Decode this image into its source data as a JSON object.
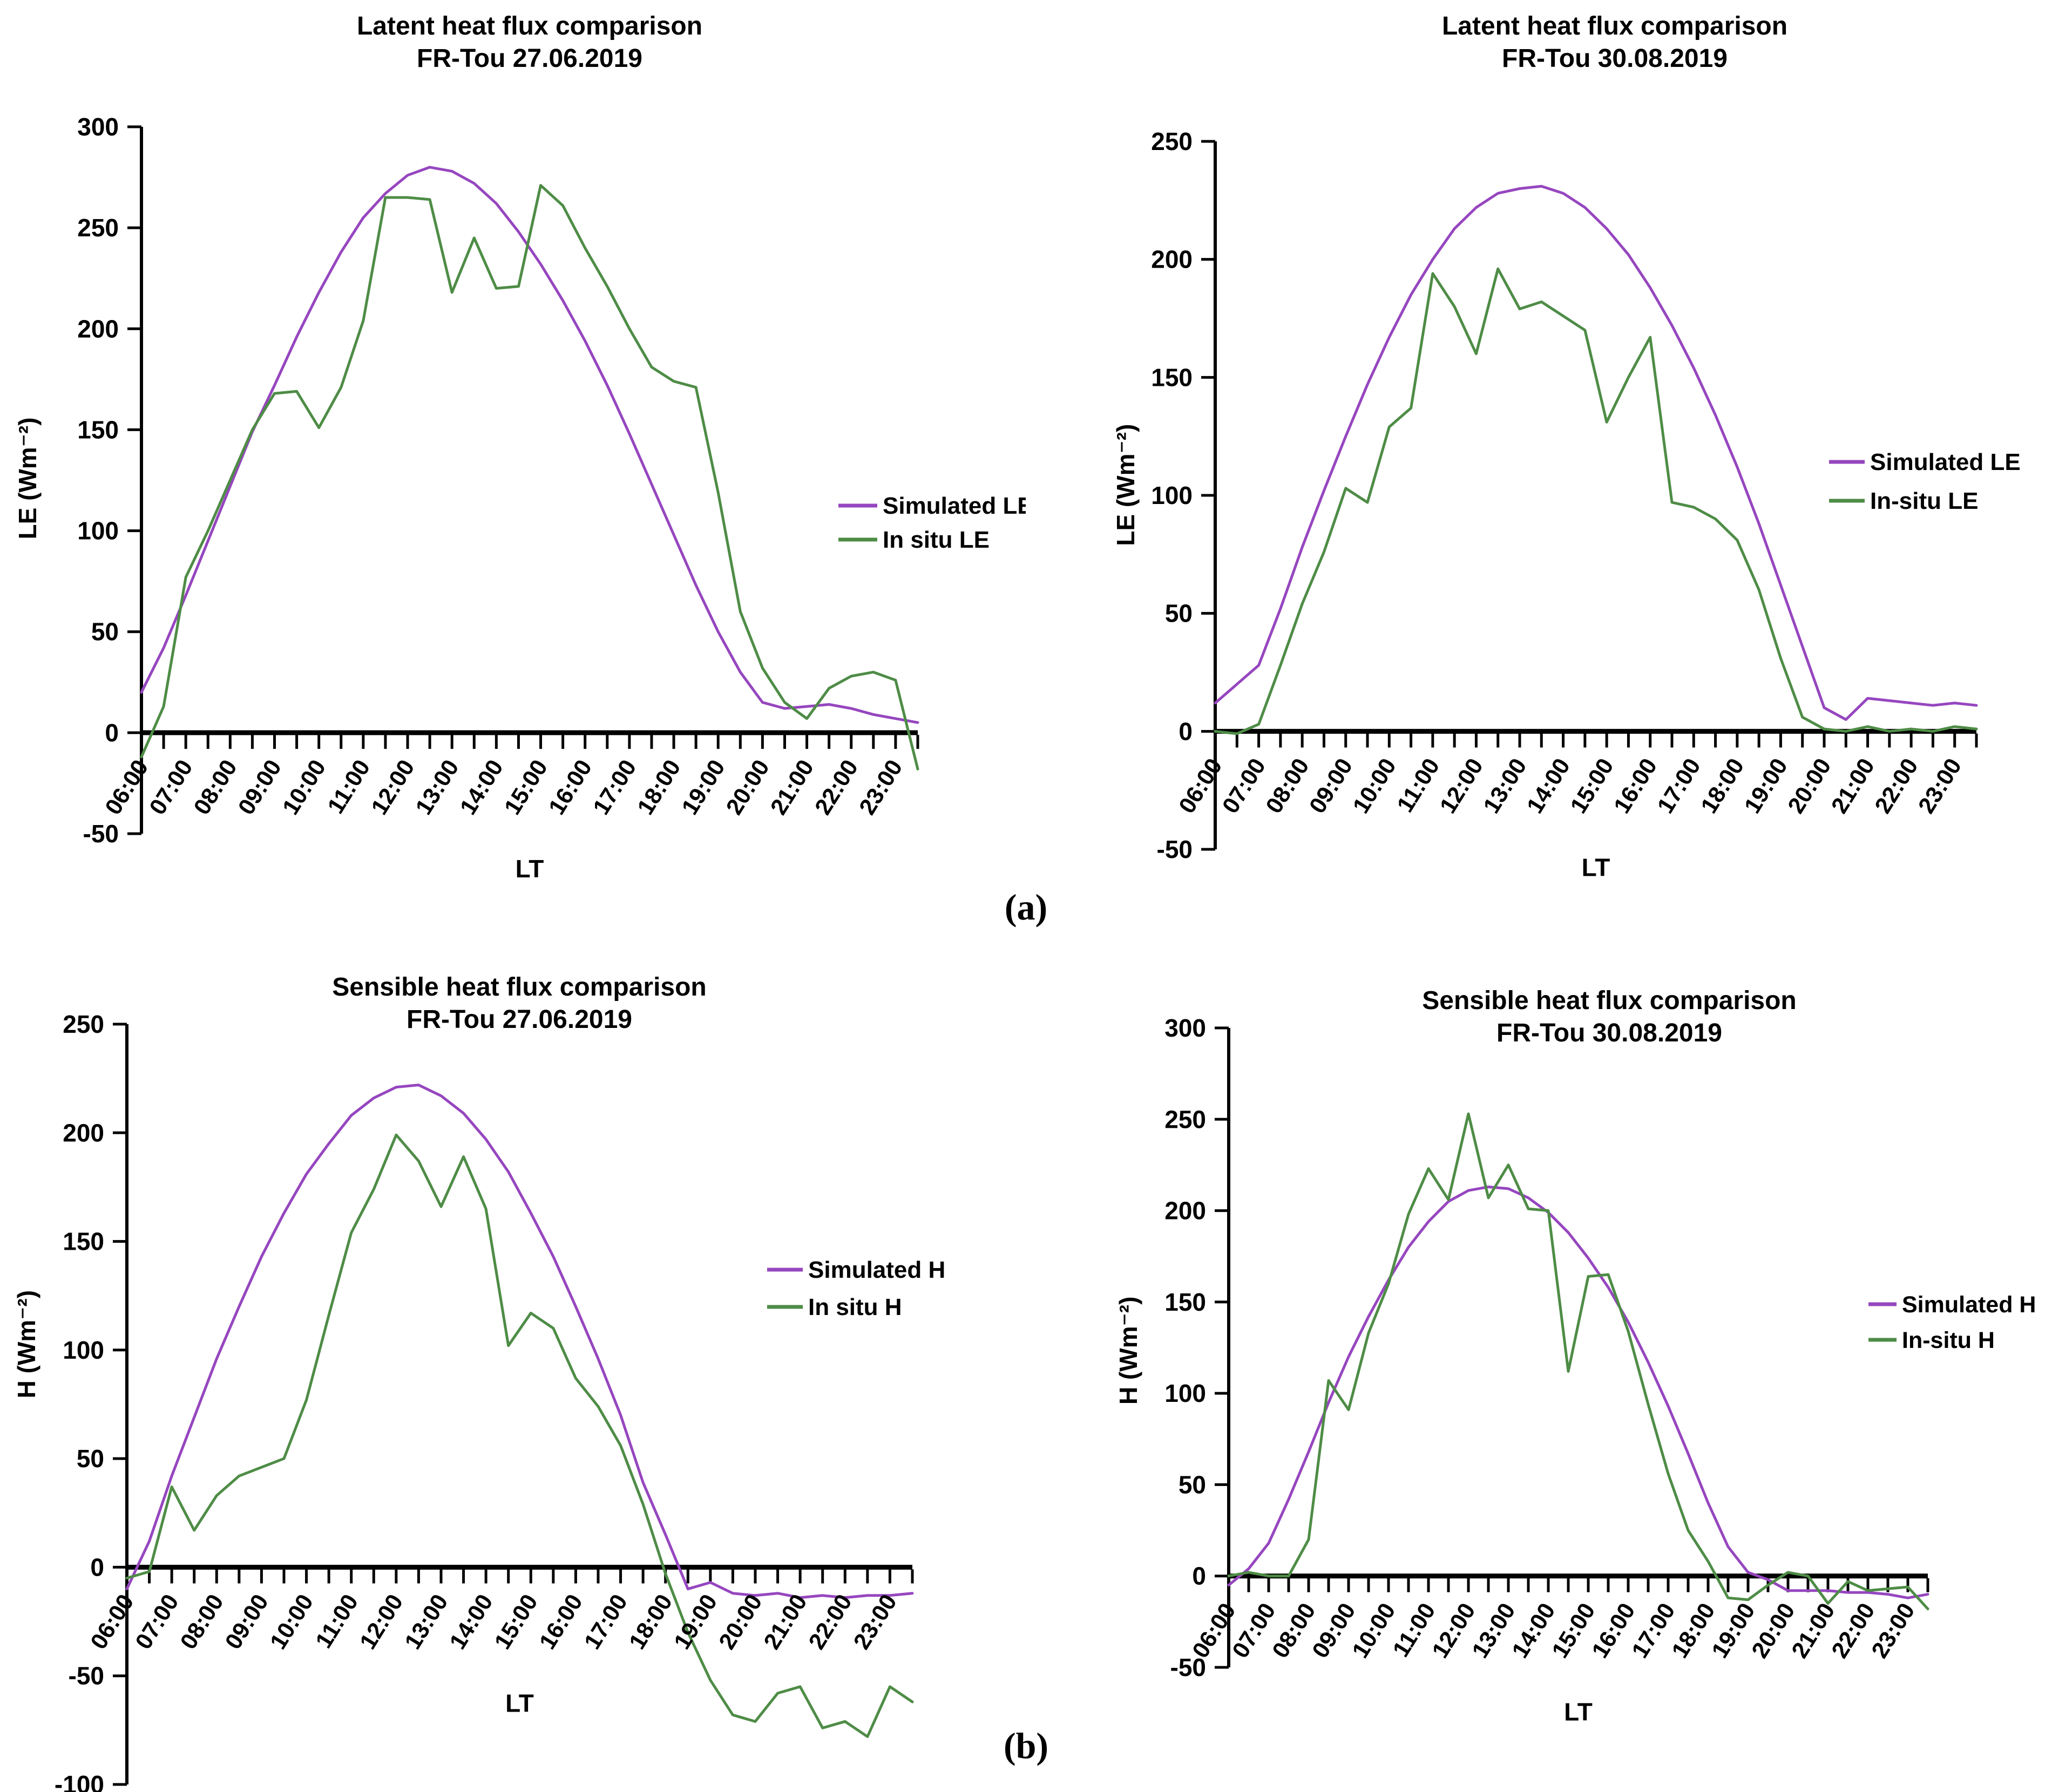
{
  "captions": {
    "a": "(a)",
    "b": "(b)"
  },
  "colors": {
    "simulated": "#9646bf",
    "insitu": "#4e8c46",
    "axis": "#000000",
    "background": "#ffffff"
  },
  "x_axis_label": "LT",
  "categories": [
    "06:00",
    "06:30",
    "07:00",
    "07:30",
    "08:00",
    "08:30",
    "09:00",
    "09:30",
    "10:00",
    "10:30",
    "11:00",
    "11:30",
    "12:00",
    "12:30",
    "13:00",
    "13:30",
    "14:00",
    "14:30",
    "15:00",
    "15:30",
    "16:00",
    "16:30",
    "17:00",
    "17:30",
    "18:00",
    "18:30",
    "19:00",
    "19:30",
    "20:00",
    "20:30",
    "21:00",
    "21:30",
    "22:00",
    "22:30",
    "23:00",
    "23:30"
  ],
  "chart_data": [
    {
      "type": "line",
      "title": "Latent heat flux comparison",
      "subtitle": "FR-Tou 27.06.2019",
      "xlabel": "LT",
      "ylabel": "LE (Wm⁻²)",
      "ylim": [
        -50,
        300
      ],
      "ytick_step": 50,
      "grid": false,
      "legend_position": "right",
      "series": [
        {
          "name": "Simulated LE",
          "color_key": "simulated",
          "values": [
            20,
            42,
            68,
            95,
            122,
            149,
            172,
            196,
            218,
            238,
            255,
            267,
            276,
            280,
            278,
            272,
            262,
            248,
            232,
            214,
            194,
            172,
            148,
            123,
            98,
            73,
            50,
            30,
            15,
            12,
            13,
            14,
            12,
            9,
            7,
            5
          ]
        },
        {
          "name": "In situ LE",
          "color_key": "insitu",
          "values": [
            -12,
            13,
            77,
            100,
            125,
            150,
            168,
            169,
            151,
            171,
            204,
            265,
            265,
            264,
            218,
            245,
            220,
            221,
            271,
            261,
            240,
            221,
            200,
            181,
            174,
            171,
            119,
            60,
            32,
            15,
            7,
            22,
            28,
            30,
            26,
            -18
          ]
        }
      ]
    },
    {
      "type": "line",
      "title": "Latent heat flux comparison",
      "subtitle": "FR-Tou 30.08.2019",
      "xlabel": "LT",
      "ylabel": "LE (Wm⁻²)",
      "ylim": [
        -50,
        250
      ],
      "ytick_step": 50,
      "grid": false,
      "legend_position": "right",
      "series": [
        {
          "name": "Simulated LE",
          "color_key": "simulated",
          "values": [
            12,
            20,
            28,
            52,
            78,
            102,
            125,
            147,
            167,
            185,
            200,
            213,
            222,
            228,
            230,
            231,
            228,
            222,
            213,
            202,
            188,
            172,
            154,
            134,
            112,
            88,
            62,
            36,
            10,
            5,
            14,
            13,
            12,
            11,
            12,
            11
          ]
        },
        {
          "name": "In-situ LE",
          "color_key": "insitu",
          "values": [
            0,
            -1,
            3,
            28,
            54,
            76,
            103,
            97,
            129,
            137,
            194,
            180,
            160,
            196,
            179,
            182,
            176,
            170,
            131,
            150,
            167,
            97,
            95,
            90,
            81,
            60,
            31,
            6,
            1,
            0,
            2,
            0,
            1,
            0,
            2,
            1
          ]
        }
      ]
    },
    {
      "type": "line",
      "title": "Sensible heat flux comparison",
      "subtitle": "FR-Tou 27.06.2019",
      "xlabel": "LT",
      "ylabel": "H (Wm⁻²)",
      "ylim": [
        -100,
        250
      ],
      "ytick_step": 50,
      "grid": false,
      "legend_position": "right",
      "series": [
        {
          "name": "Simulated H",
          "color_key": "simulated",
          "values": [
            -10,
            12,
            42,
            69,
            96,
            120,
            143,
            163,
            181,
            195,
            208,
            216,
            221,
            222,
            217,
            209,
            197,
            182,
            163,
            143,
            120,
            96,
            70,
            39,
            15,
            -10,
            -7,
            -12,
            -13,
            -12,
            -14,
            -13,
            -14,
            -13,
            -13,
            -12
          ]
        },
        {
          "name": "In situ H",
          "color_key": "insitu",
          "values": [
            -5,
            -2,
            37,
            17,
            33,
            42,
            46,
            50,
            77,
            116,
            154,
            174,
            199,
            187,
            166,
            189,
            165,
            102,
            117,
            110,
            87,
            74,
            56,
            29,
            -3,
            -30,
            -52,
            -68,
            -71,
            -58,
            -55,
            -74,
            -71,
            -78,
            -55,
            -62
          ]
        }
      ]
    },
    {
      "type": "line",
      "title": "Sensible heat flux comparison",
      "subtitle": "FR-Tou 30.08.2019",
      "xlabel": "LT",
      "ylabel": "H (Wm⁻²)",
      "ylim": [
        -50,
        300
      ],
      "ytick_step": 50,
      "grid": false,
      "legend_position": "right",
      "series": [
        {
          "name": "Simulated H",
          "color_key": "simulated",
          "values": [
            -5,
            4,
            18,
            42,
            68,
            95,
            120,
            142,
            162,
            180,
            194,
            205,
            211,
            213,
            212,
            207,
            199,
            188,
            174,
            158,
            139,
            117,
            93,
            67,
            40,
            16,
            2,
            -2,
            -8,
            -8,
            -8,
            -9,
            -9,
            -10,
            -12,
            -10
          ]
        },
        {
          "name": "In-situ H",
          "color_key": "insitu",
          "values": [
            0,
            2,
            0,
            0,
            20,
            107,
            91,
            133,
            160,
            198,
            223,
            206,
            253,
            207,
            225,
            201,
            200,
            112,
            164,
            165,
            134,
            94,
            56,
            25,
            8,
            -12,
            -13,
            -5,
            2,
            0,
            -15,
            -3,
            -8,
            -7,
            -6,
            -18
          ]
        }
      ]
    }
  ]
}
